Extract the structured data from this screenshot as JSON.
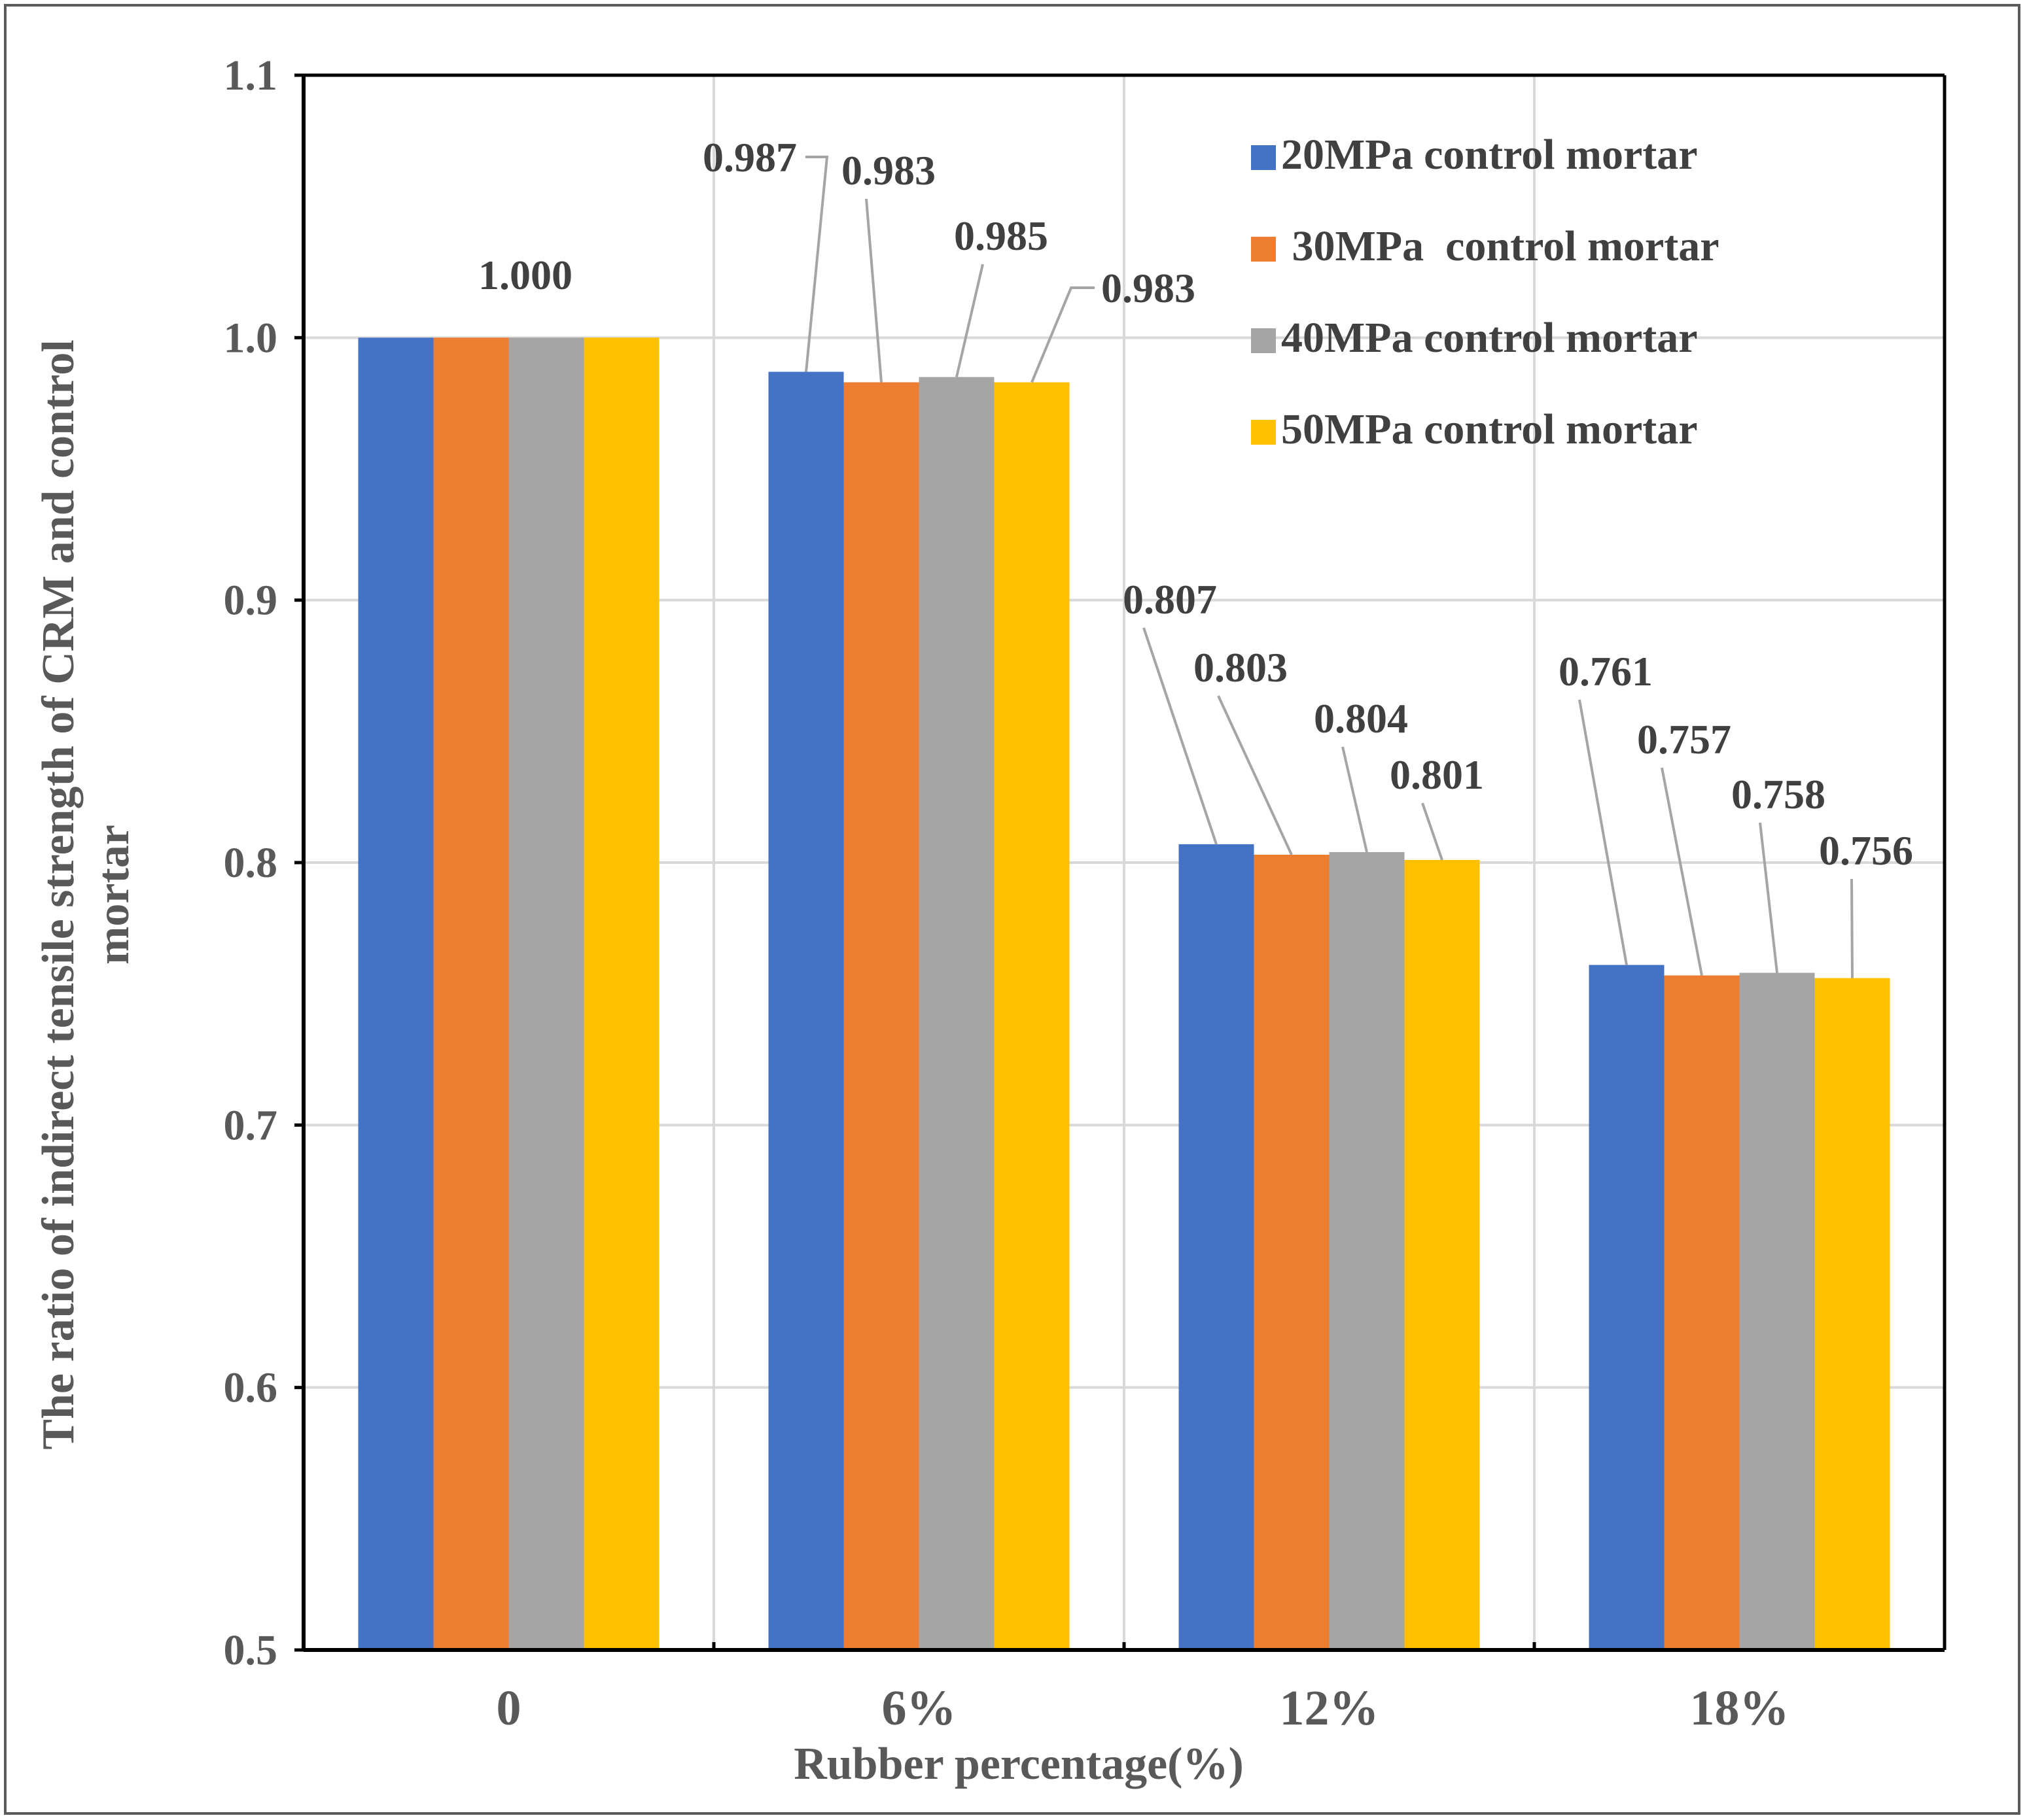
{
  "chart_data": {
    "type": "bar",
    "title": "",
    "xlabel": "Rubber percentage(%)",
    "ylabel_lines": [
      "The ratio of indirect tensile strength of CRM and control",
      "mortar"
    ],
    "categories": [
      "0",
      "6%",
      "12%",
      "18%"
    ],
    "ylim": [
      0.5,
      1.1
    ],
    "yticks": [
      0.5,
      0.6,
      0.7,
      0.8,
      0.9,
      1.0,
      1.1
    ],
    "ytick_labels": [
      "0.5",
      "0.6",
      "0.7",
      "0.8",
      "0.9",
      "1.0",
      "1.1"
    ],
    "grid": true,
    "legend_position": "top-right",
    "series": [
      {
        "name": "20MPa control mortar",
        "color": "#4472C4",
        "values": [
          1.0,
          0.987,
          0.807,
          0.761
        ]
      },
      {
        "name": " 30MPa  control mortar",
        "color": "#ED7D31",
        "values": [
          1.0,
          0.983,
          0.803,
          0.757
        ]
      },
      {
        "name": "40MPa control mortar",
        "color": "#A5A5A5",
        "values": [
          1.0,
          0.985,
          0.804,
          0.758
        ]
      },
      {
        "name": "50MPa control mortar",
        "color": "#FFC000",
        "values": [
          1.0,
          0.983,
          0.801,
          0.756
        ]
      }
    ],
    "data_labels": [
      [
        "1.000",
        "0.987",
        "0.807",
        "0.761"
      ],
      [
        null,
        "0.983",
        "0.803",
        "0.757"
      ],
      [
        null,
        "0.985",
        "0.804",
        "0.758"
      ],
      [
        null,
        "0.983",
        "0.801",
        "0.756"
      ]
    ]
  }
}
